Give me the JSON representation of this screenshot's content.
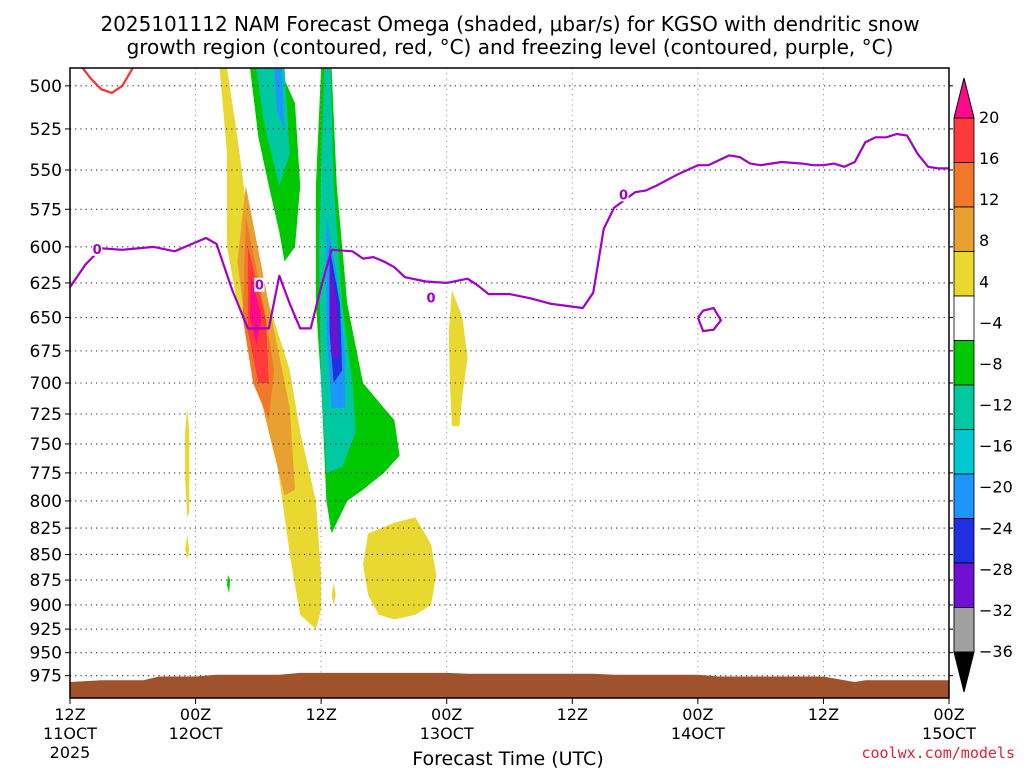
{
  "chart_data": {
    "type": "heatmap",
    "title": "2025101112 NAM Forecast Omega (shaded, μbar/s) for KGSO with dendritic snow\ngrowth region (contoured, red, °C) and freezing level (contoured, purple, °C)",
    "xlabel": "Forecast Time (UTC)",
    "ylabel": "",
    "credit": "coolwx.com/models",
    "x_ticks": [
      {
        "hour": 0,
        "line1": "12Z",
        "line2": "11OCT",
        "line3": "2025"
      },
      {
        "hour": 12,
        "line1": "00Z",
        "line2": "12OCT",
        "line3": ""
      },
      {
        "hour": 24,
        "line1": "12Z",
        "line2": "",
        "line3": ""
      },
      {
        "hour": 36,
        "line1": "00Z",
        "line2": "13OCT",
        "line3": ""
      },
      {
        "hour": 48,
        "line1": "12Z",
        "line2": "",
        "line3": ""
      },
      {
        "hour": 60,
        "line1": "00Z",
        "line2": "14OCT",
        "line3": ""
      },
      {
        "hour": 72,
        "line1": "12Z",
        "line2": "",
        "line3": ""
      },
      {
        "hour": 84,
        "line1": "00Z",
        "line2": "15OCT",
        "line3": ""
      }
    ],
    "xlim_hours": [
      0,
      84
    ],
    "y_ticks": [
      500,
      525,
      550,
      575,
      600,
      625,
      650,
      675,
      700,
      725,
      750,
      775,
      800,
      825,
      850,
      875,
      900,
      925,
      950,
      975
    ],
    "ylim_mb": [
      490,
      1000
    ],
    "y_scale": "log",
    "y_inverted": true,
    "grid": true,
    "colorbar": {
      "labels": [
        "20",
        "16",
        "12",
        "8",
        "4",
        "−4",
        "−8",
        "−12",
        "−16",
        "−20",
        "−24",
        "−28",
        "−32",
        "−36"
      ],
      "colors": [
        "#ff0a8a",
        "#ff3a3a",
        "#f07828",
        "#e8a030",
        "#e8d830",
        "#ffffff",
        "#00c800",
        "#00c8a0",
        "#00c8d0",
        "#1e96ff",
        "#2030e0",
        "#7010d0",
        "#a000c8",
        "#a0a0a0",
        "#000000"
      ]
    },
    "freezing_level": {
      "label": "0",
      "color": "#a000c8",
      "points": [
        [
          0,
          628
        ],
        [
          1.5,
          612
        ],
        [
          3,
          601
        ],
        [
          5,
          602
        ],
        [
          8,
          600
        ],
        [
          10,
          603
        ],
        [
          12,
          597
        ],
        [
          13,
          594
        ],
        [
          14,
          598
        ],
        [
          15.5,
          630
        ],
        [
          17,
          658
        ],
        [
          19,
          658
        ],
        [
          20,
          620
        ],
        [
          21,
          640
        ],
        [
          22,
          658
        ],
        [
          23,
          658
        ],
        [
          24,
          628
        ],
        [
          25,
          602
        ],
        [
          27,
          603
        ],
        [
          28,
          608
        ],
        [
          29,
          607
        ],
        [
          30,
          610
        ],
        [
          31,
          614
        ],
        [
          32,
          621
        ],
        [
          34,
          624
        ],
        [
          36,
          625
        ],
        [
          38,
          622
        ],
        [
          39,
          627
        ],
        [
          40,
          633
        ],
        [
          42,
          633
        ],
        [
          44,
          636
        ],
        [
          46,
          640
        ],
        [
          48,
          642
        ],
        [
          49,
          643
        ],
        [
          50,
          632
        ],
        [
          50.5,
          610
        ],
        [
          51,
          588
        ],
        [
          52,
          574
        ],
        [
          53,
          569
        ],
        [
          54,
          564
        ],
        [
          55,
          563
        ],
        [
          56,
          560
        ],
        [
          58,
          553
        ],
        [
          60,
          547
        ],
        [
          61,
          547
        ],
        [
          63,
          541
        ],
        [
          64,
          542
        ],
        [
          65,
          546
        ],
        [
          66,
          547
        ],
        [
          68,
          545
        ],
        [
          70,
          546
        ],
        [
          71,
          547
        ],
        [
          72,
          547
        ],
        [
          73,
          546
        ],
        [
          74,
          548
        ],
        [
          75,
          545
        ],
        [
          76,
          533
        ],
        [
          77,
          530
        ],
        [
          78,
          530
        ],
        [
          79,
          528
        ],
        [
          80,
          529
        ],
        [
          81,
          540
        ],
        [
          82,
          548
        ],
        [
          83,
          549
        ],
        [
          84,
          549
        ]
      ]
    },
    "freezing_level_island": [
      [
        60,
        650
      ],
      [
        60.5,
        645
      ],
      [
        61.5,
        643
      ],
      [
        62.2,
        652
      ],
      [
        61.5,
        659
      ],
      [
        60.5,
        660
      ],
      [
        60,
        650
      ]
    ],
    "dgz_contour": {
      "color": "#ff3030",
      "points": [
        [
          1.2,
          490
        ],
        [
          2,
          496
        ],
        [
          3,
          502
        ],
        [
          4,
          504
        ],
        [
          5,
          500
        ],
        [
          6,
          490
        ]
      ]
    },
    "omega_regions": [
      {
        "value": 4,
        "color": "#e8d830",
        "points": [
          [
            15,
            490
          ],
          [
            16,
            530
          ],
          [
            17,
            580
          ],
          [
            19,
            640
          ],
          [
            21,
            690
          ],
          [
            22,
            740
          ],
          [
            23.5,
            800
          ],
          [
            24,
            870
          ],
          [
            24,
            905
          ],
          [
            23.5,
            925
          ],
          [
            22,
            910
          ],
          [
            21,
            850
          ],
          [
            20,
            780
          ],
          [
            19,
            720
          ],
          [
            17.5,
            670
          ],
          [
            16,
            640
          ],
          [
            15,
            600
          ],
          [
            15,
            540
          ],
          [
            14.3,
            490
          ]
        ]
      },
      {
        "value": 8,
        "color": "#e8a030",
        "points": [
          [
            16.8,
            560
          ],
          [
            19,
            640
          ],
          [
            21,
            720
          ],
          [
            21.5,
            790
          ],
          [
            20.5,
            795
          ],
          [
            19,
            740
          ],
          [
            17,
            670
          ],
          [
            16,
            610
          ]
        ]
      },
      {
        "value": 12,
        "color": "#f07828",
        "points": [
          [
            16.8,
            580
          ],
          [
            18.5,
            640
          ],
          [
            19.5,
            690
          ],
          [
            19,
            730
          ],
          [
            17.5,
            700
          ],
          [
            16.5,
            650
          ]
        ]
      },
      {
        "value": 16,
        "color": "#ff3a3a",
        "points": [
          [
            17,
            600
          ],
          [
            18.7,
            650
          ],
          [
            19,
            700
          ],
          [
            18,
            700
          ],
          [
            17,
            660
          ]
        ]
      },
      {
        "value": 20,
        "color": "#ff0a8a",
        "points": [
          [
            17.3,
            620
          ],
          [
            18.3,
            650
          ],
          [
            17.8,
            670
          ],
          [
            17.2,
            650
          ]
        ]
      },
      {
        "value": -4,
        "color": "#00c800",
        "points": [
          [
            17.2,
            490
          ],
          [
            18.5,
            490
          ],
          [
            20,
            490
          ],
          [
            21.5,
            510
          ],
          [
            22,
            560
          ],
          [
            21.5,
            600
          ],
          [
            20.5,
            610
          ],
          [
            20,
            590
          ],
          [
            19,
            560
          ],
          [
            18,
            530
          ]
        ]
      },
      {
        "value": -8,
        "color": "#00c8a0",
        "points": [
          [
            17.8,
            490
          ],
          [
            20.5,
            490
          ],
          [
            21,
            540
          ],
          [
            20,
            560
          ],
          [
            18.5,
            520
          ]
        ]
      },
      {
        "value": -16,
        "color": "#1e96ff",
        "points": [
          [
            19.5,
            490
          ],
          [
            20.2,
            490
          ],
          [
            20.5,
            525
          ],
          [
            19.8,
            515
          ]
        ]
      },
      {
        "value": -4,
        "color": "#00c800",
        "points": [
          [
            24,
            490
          ],
          [
            25,
            490
          ],
          [
            25.5,
            560
          ],
          [
            26.5,
            640
          ],
          [
            28,
            700
          ],
          [
            30,
            720
          ],
          [
            31,
            730
          ],
          [
            31.5,
            760
          ],
          [
            30,
            775
          ],
          [
            28,
            790
          ],
          [
            26.5,
            800
          ],
          [
            25,
            830
          ],
          [
            24.5,
            800
          ],
          [
            24,
            700
          ],
          [
            23.5,
            640
          ],
          [
            23.5,
            560
          ]
        ]
      },
      {
        "value": -8,
        "color": "#00c8a0",
        "points": [
          [
            24.3,
            490
          ],
          [
            24.9,
            490
          ],
          [
            25.2,
            560
          ],
          [
            26,
            640
          ],
          [
            27,
            700
          ],
          [
            27.3,
            740
          ],
          [
            26,
            770
          ],
          [
            24.5,
            775
          ],
          [
            24,
            700
          ],
          [
            23.8,
            600
          ]
        ]
      },
      {
        "value": -16,
        "color": "#1e96ff",
        "points": [
          [
            24.5,
            580
          ],
          [
            25.5,
            620
          ],
          [
            26.3,
            680
          ],
          [
            26.3,
            720
          ],
          [
            25,
            720
          ],
          [
            24.5,
            660
          ]
        ]
      },
      {
        "value": -24,
        "color": "#2030e0",
        "points": [
          [
            24.8,
            600
          ],
          [
            25.8,
            640
          ],
          [
            26,
            690
          ],
          [
            25.2,
            700
          ],
          [
            24.8,
            660
          ]
        ]
      },
      {
        "value": -28,
        "color": "#7010d0",
        "points": [
          [
            24.8,
            610
          ],
          [
            25.5,
            640
          ],
          [
            25.7,
            680
          ],
          [
            25,
            680
          ],
          [
            24.9,
            650
          ]
        ]
      },
      {
        "value": 4,
        "color": "#e8d830",
        "points": [
          [
            28.5,
            830
          ],
          [
            31,
            820
          ],
          [
            33,
            815
          ],
          [
            34.5,
            840
          ],
          [
            35,
            870
          ],
          [
            34.5,
            900
          ],
          [
            33,
            910
          ],
          [
            31,
            915
          ],
          [
            29.5,
            910
          ],
          [
            28.5,
            890
          ],
          [
            28,
            860
          ]
        ]
      },
      {
        "value": 4,
        "color": "#e8d830",
        "points": [
          [
            36.5,
            630
          ],
          [
            37.5,
            650
          ],
          [
            38,
            680
          ],
          [
            37.5,
            710
          ],
          [
            37.2,
            735
          ],
          [
            36.5,
            735
          ],
          [
            36.3,
            700
          ],
          [
            36.2,
            660
          ]
        ]
      },
      {
        "value": 4,
        "color": "#e8d830",
        "points": [
          [
            11.2,
            720
          ],
          [
            11.4,
            740
          ],
          [
            11.4,
            810
          ],
          [
            11.2,
            815
          ],
          [
            11,
            780
          ],
          [
            11,
            740
          ]
        ]
      },
      {
        "value": 4,
        "color": "#e8d830",
        "points": [
          [
            11.2,
            832
          ],
          [
            11.4,
            845
          ],
          [
            11.2,
            855
          ],
          [
            11,
            845
          ]
        ]
      },
      {
        "value": 4,
        "color": "#e8d830",
        "points": [
          [
            25.2,
            878
          ],
          [
            25.4,
            890
          ],
          [
            25.2,
            900
          ],
          [
            25,
            890
          ]
        ]
      },
      {
        "value": -4,
        "color": "#00c800",
        "points": [
          [
            15.1,
            870
          ],
          [
            15.3,
            875
          ],
          [
            15.2,
            888
          ],
          [
            15,
            880
          ]
        ]
      }
    ],
    "terrain": {
      "color": "#a0522d",
      "top_points": [
        [
          0,
          982
        ],
        [
          3,
          980
        ],
        [
          7,
          980
        ],
        [
          8.5,
          976
        ],
        [
          12,
          976
        ],
        [
          14,
          974
        ],
        [
          20,
          974
        ],
        [
          22,
          972
        ],
        [
          36,
          972
        ],
        [
          38,
          973
        ],
        [
          50,
          973
        ],
        [
          52,
          974
        ],
        [
          60,
          974
        ],
        [
          62,
          976
        ],
        [
          72,
          976
        ],
        [
          74,
          980
        ],
        [
          75,
          982
        ],
        [
          76,
          980
        ],
        [
          84,
          980
        ]
      ]
    }
  }
}
